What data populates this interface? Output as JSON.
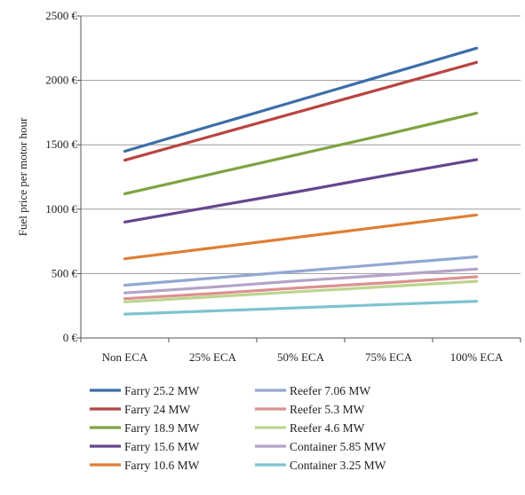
{
  "chart_data": {
    "type": "line",
    "title": "",
    "xlabel": "",
    "ylabel": "Fuel price per motor hour",
    "categories": [
      "Non ECA",
      "25% ECA",
      "50% ECA",
      "75% ECA",
      "100% ECA"
    ],
    "ylim": [
      0,
      2500
    ],
    "yticks": [
      0,
      500,
      1000,
      1500,
      2000,
      2500
    ],
    "ytick_labels": [
      "0 €",
      "500 €",
      "1000 €",
      "1500 €",
      "2000 €",
      "2500 €"
    ],
    "grid": "horizontal",
    "legend_position": "bottom",
    "series": [
      {
        "name": "Farry 25.2 MW",
        "color": "#3c6ea8",
        "values": [
          1450,
          1650,
          1850,
          2050,
          2250
        ]
      },
      {
        "name": "Farry 24 MW",
        "color": "#b94442",
        "values": [
          1380,
          1570,
          1760,
          1950,
          2140
        ]
      },
      {
        "name": "Farry 18.9 MW",
        "color": "#7ea341",
        "values": [
          1120,
          1275,
          1430,
          1585,
          1745
        ]
      },
      {
        "name": "Farry 15.6 MW",
        "color": "#65468f",
        "values": [
          900,
          1020,
          1140,
          1265,
          1385
        ]
      },
      {
        "name": "Farry 10.6 MW",
        "color": "#e07f35",
        "values": [
          615,
          700,
          785,
          870,
          955
        ]
      },
      {
        "name": "Reefer 7.06 MW",
        "color": "#92a8d4",
        "values": [
          410,
          465,
          520,
          575,
          630
        ]
      },
      {
        "name": "Reefer 5.3 MW",
        "color": "#dd9090",
        "values": [
          305,
          345,
          390,
          430,
          475
        ]
      },
      {
        "name": "Reefer 4.6 MW",
        "color": "#bcd58e",
        "values": [
          280,
          320,
          360,
          400,
          440
        ]
      },
      {
        "name": "Container 5.85 MW",
        "color": "#b3a4c8",
        "values": [
          350,
          395,
          445,
          490,
          535
        ]
      },
      {
        "name": "Container 3.25 MW",
        "color": "#7fc3d0",
        "values": [
          185,
          210,
          235,
          260,
          285
        ]
      }
    ]
  }
}
